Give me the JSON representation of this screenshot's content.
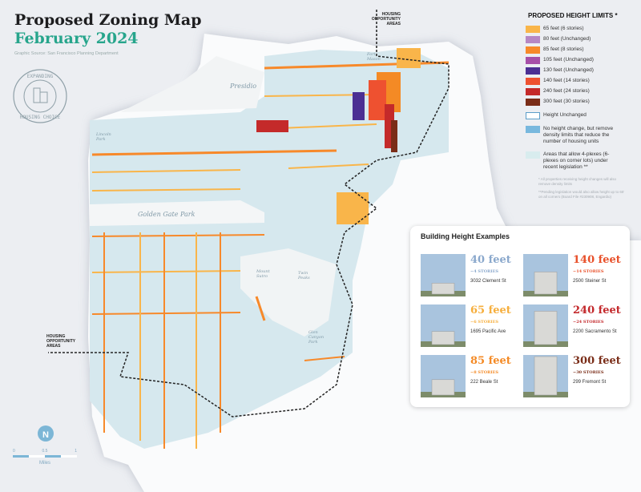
{
  "header": {
    "title": "Proposed Zoning Map",
    "subtitle": "February 2024",
    "source": "Graphic Source: San Francisco Planning Department"
  },
  "badge": {
    "text_top": "EXPANDING",
    "text_bottom": "HOUSING CHOICE"
  },
  "legend": {
    "title": "PROPOSED HEIGHT LIMITS *",
    "items": [
      {
        "label": "65 feet (6 stories)",
        "color": "#f9b54a"
      },
      {
        "label": "80 feet (Unchanged)",
        "color": "#b687c4"
      },
      {
        "label": "85 feet (8 stories)",
        "color": "#f7892a"
      },
      {
        "label": "105 feet (Unchanged)",
        "color": "#a64fa8"
      },
      {
        "label": "130 feet (Unchanged)",
        "color": "#4b2f93"
      },
      {
        "label": "140 feet (14 stories)",
        "color": "#ee5130"
      },
      {
        "label": "240 feet (24 stories)",
        "color": "#c42a2a"
      },
      {
        "label": "300 feet (30 stories)",
        "color": "#7a2d18"
      }
    ],
    "extra": [
      {
        "label": "Height Unchanged",
        "color": "#ffffff",
        "border": "#5c9ec9"
      },
      {
        "label": "No height change, but remove density limits that reduce the number of housing units",
        "color": "#78b8de"
      },
      {
        "label": "Areas that allow 4-plexes (6-plexes on corner lots) under recent legislation **",
        "color": "#d8ecee"
      }
    ],
    "note1": "* All properties receiving height changes will also remove density limits",
    "note2": "**Pending legislation would also allow height up to 65' on all corners (Board File #230908, Engardio)"
  },
  "examples": {
    "title": "Building Height Examples",
    "items": [
      {
        "height": "40 feet",
        "stories": "~4 STORIES",
        "address": "3032 Clement St",
        "color": "#8aa8cc"
      },
      {
        "height": "140 feet",
        "stories": "~14 STORIES",
        "address": "2500 Steiner St",
        "color": "#e8502a"
      },
      {
        "height": "65 feet",
        "stories": "~6 STORIES",
        "address": "1695 Pacific Ave",
        "color": "#f6ae3c"
      },
      {
        "height": "240 feet",
        "stories": "~24 STORIES",
        "address": "2200 Sacramento St",
        "color": "#c3282b"
      },
      {
        "height": "85 feet",
        "stories": "~8 STORIES",
        "address": "222 Beale St",
        "color": "#f48a25"
      },
      {
        "height": "300 feet",
        "stories": "~30 STORIES",
        "address": "299 Fremont St",
        "color": "#7a2d18"
      }
    ]
  },
  "map": {
    "labels": {
      "presidio": "Presidio",
      "lincoln": "Lincoln Park",
      "ggp": "Golden Gate Park",
      "fortmason": "Fort Mason",
      "sutro": "Mount Sutro",
      "twinpeaks": "Twin Peaks",
      "glen": "Glen Canyon Park"
    },
    "hoa": "HOUSING OPPORTUNITY AREAS"
  },
  "scale": {
    "ticks": [
      "0",
      "0.5",
      "1"
    ],
    "unit": "Miles"
  }
}
